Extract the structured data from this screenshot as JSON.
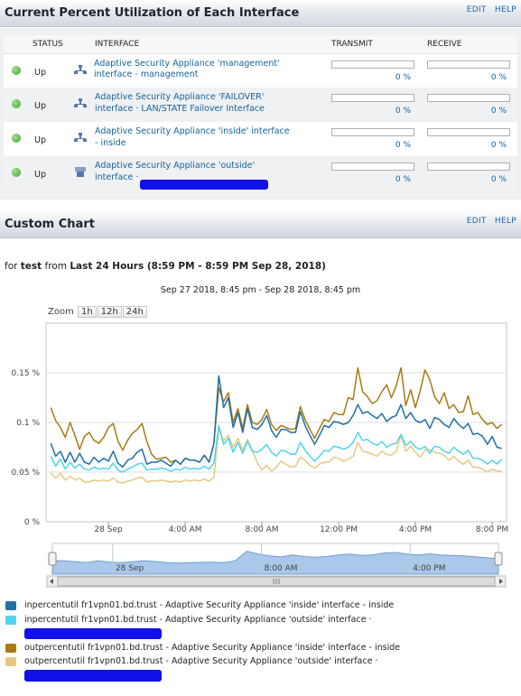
{
  "panel1": {
    "title": "Current Percent Utilization of Each Interface",
    "edit_label": "EDIT",
    "help_label": "HELP",
    "columns": {
      "status": "STATUS",
      "interface": "INTERFACE",
      "transmit": "TRANSMIT",
      "receive": "RECEIVE"
    },
    "rows": [
      {
        "status": "Up",
        "icon": "network-interface-icon",
        "name_line1": "Adaptive Security Appliance 'management'",
        "name_line2": "interface - management",
        "transmit": "0 %",
        "receive": "0 %"
      },
      {
        "status": "Up",
        "icon": "network-interface-icon",
        "name_line1": "Adaptive Security Appliance 'FAILOVER'",
        "name_line2": "interface · LAN/STATE Failover Interface",
        "transmit": "0 %",
        "receive": "0 %"
      },
      {
        "status": "Up",
        "icon": "network-interface-icon",
        "name_line1": "Adaptive Security Appliance 'inside' interface",
        "name_line2": "- inside",
        "transmit": "0 %",
        "receive": "0 %"
      },
      {
        "status": "Up",
        "icon": "ethernet-port-icon",
        "name_line1": "Adaptive Security Appliance 'outside'",
        "name_line2": "interface ·",
        "transmit": "0 %",
        "receive": "0 %"
      }
    ]
  },
  "panel2": {
    "title": "Custom Chart",
    "edit_label": "EDIT",
    "help_label": "HELP",
    "for_label": "for",
    "node": "test",
    "from_label": "from",
    "period": "Last 24 Hours (8:59 PM - 8:59 PM Sep 28, 2018)",
    "date_range": "Sep 27 2018, 8:45 pm - Sep 28 2018, 8:45 pm",
    "zoom_label": "Zoom",
    "zoom_options": [
      "1h",
      "12h",
      "24h"
    ]
  },
  "chart_data": {
    "type": "line",
    "x_labels": [
      "28 Sep",
      "4:00 AM",
      "8:00 AM",
      "12:00 PM",
      "4:00 PM",
      "8:00 PM"
    ],
    "navigator_labels": [
      "28 Sep",
      "8:00 AM",
      "4:00 PM"
    ],
    "y_labels": [
      "0 %",
      "0.05 %",
      "0.1 %",
      "0.15 %"
    ],
    "ylim": [
      0,
      0.2
    ],
    "xlim_hours": [
      -3.25,
      20.75
    ],
    "x_hours": [
      -3.0,
      -2.75,
      -2.5,
      -2.25,
      -2.0,
      -1.75,
      -1.5,
      -1.25,
      -1.0,
      -0.75,
      -0.5,
      -0.25,
      0.0,
      0.25,
      0.5,
      0.75,
      1.0,
      1.25,
      1.5,
      1.75,
      2.0,
      2.25,
      2.5,
      2.75,
      3.0,
      3.25,
      3.5,
      3.75,
      4.0,
      4.25,
      4.5,
      4.75,
      5.0,
      5.25,
      5.5,
      5.75,
      6.0,
      6.25,
      6.5,
      6.75,
      7.0,
      7.25,
      7.5,
      7.75,
      8.0,
      8.25,
      8.5,
      8.75,
      9.0,
      9.25,
      9.5,
      9.75,
      10.0,
      10.25,
      10.5,
      10.75,
      11.0,
      11.25,
      11.5,
      11.75,
      12.0,
      12.25,
      12.5,
      12.75,
      13.0,
      13.25,
      13.5,
      13.75,
      14.0,
      14.25,
      14.5,
      14.75,
      15.0,
      15.25,
      15.5,
      15.75,
      16.0,
      16.25,
      16.5,
      16.75,
      17.0,
      17.25,
      17.5,
      17.75,
      18.0,
      18.25,
      18.5,
      18.75,
      19.0,
      19.25,
      19.5,
      19.75,
      20.0,
      20.25,
      20.5
    ],
    "series": [
      {
        "name": "inpercentutil fr1vpn01.bd.trust - Adaptive Security Appliance 'inside' interface - inside",
        "color": "#1f6fa8",
        "values": [
          0.079,
          0.066,
          0.071,
          0.06,
          0.07,
          0.06,
          0.069,
          0.06,
          0.058,
          0.065,
          0.06,
          0.064,
          0.061,
          0.071,
          0.059,
          0.055,
          0.062,
          0.064,
          0.07,
          0.073,
          0.058,
          0.06,
          0.06,
          0.062,
          0.059,
          0.056,
          0.062,
          0.058,
          0.064,
          0.062,
          0.062,
          0.06,
          0.067,
          0.06,
          0.079,
          0.147,
          0.115,
          0.125,
          0.095,
          0.11,
          0.09,
          0.114,
          0.095,
          0.093,
          0.098,
          0.107,
          0.092,
          0.085,
          0.093,
          0.093,
          0.09,
          0.09,
          0.111,
          0.097,
          0.087,
          0.078,
          0.087,
          0.097,
          0.095,
          0.101,
          0.1,
          0.098,
          0.1,
          0.107,
          0.118,
          0.109,
          0.111,
          0.107,
          0.104,
          0.109,
          0.101,
          0.105,
          0.107,
          0.118,
          0.104,
          0.11,
          0.102,
          0.1,
          0.103,
          0.094,
          0.105,
          0.103,
          0.098,
          0.095,
          0.104,
          0.098,
          0.094,
          0.099,
          0.088,
          0.089,
          0.086,
          0.078,
          0.086,
          0.075,
          0.074
        ]
      },
      {
        "name": "inpercentutil fr1vpn01.bd.trust - Adaptive Security Appliance 'outside' interface ·",
        "color": "#4fd4ec",
        "values": [
          0.066,
          0.056,
          0.063,
          0.053,
          0.06,
          0.054,
          0.058,
          0.053,
          0.052,
          0.055,
          0.053,
          0.054,
          0.053,
          0.059,
          0.052,
          0.05,
          0.053,
          0.055,
          0.058,
          0.059,
          0.052,
          0.053,
          0.053,
          0.054,
          0.053,
          0.051,
          0.053,
          0.052,
          0.055,
          0.053,
          0.054,
          0.053,
          0.056,
          0.053,
          0.059,
          0.097,
          0.078,
          0.084,
          0.07,
          0.08,
          0.069,
          0.081,
          0.071,
          0.07,
          0.073,
          0.078,
          0.07,
          0.066,
          0.072,
          0.071,
          0.068,
          0.068,
          0.08,
          0.072,
          0.066,
          0.061,
          0.066,
          0.072,
          0.071,
          0.076,
          0.075,
          0.073,
          0.075,
          0.08,
          0.09,
          0.082,
          0.083,
          0.079,
          0.077,
          0.081,
          0.075,
          0.078,
          0.079,
          0.088,
          0.077,
          0.081,
          0.075,
          0.073,
          0.076,
          0.069,
          0.076,
          0.075,
          0.071,
          0.069,
          0.075,
          0.071,
          0.068,
          0.072,
          0.064,
          0.064,
          0.062,
          0.058,
          0.062,
          0.058,
          0.063
        ]
      },
      {
        "name": "outpercentutil fr1vpn01.bd.trust - Adaptive Security Appliance 'inside' interface - inside",
        "color": "#a87b14",
        "values": [
          0.115,
          0.102,
          0.095,
          0.085,
          0.1,
          0.087,
          0.073,
          0.086,
          0.09,
          0.082,
          0.079,
          0.085,
          0.095,
          0.099,
          0.081,
          0.072,
          0.082,
          0.089,
          0.093,
          0.099,
          0.081,
          0.068,
          0.063,
          0.064,
          0.065,
          0.06,
          0.062,
          0.058,
          0.064,
          0.062,
          0.062,
          0.06,
          0.067,
          0.06,
          0.079,
          0.135,
          0.121,
          0.13,
          0.1,
          0.114,
          0.094,
          0.118,
          0.1,
          0.098,
          0.103,
          0.113,
          0.098,
          0.092,
          0.097,
          0.095,
          0.093,
          0.094,
          0.116,
          0.103,
          0.093,
          0.084,
          0.094,
          0.103,
          0.101,
          0.11,
          0.108,
          0.108,
          0.125,
          0.123,
          0.155,
          0.131,
          0.126,
          0.119,
          0.122,
          0.131,
          0.138,
          0.125,
          0.137,
          0.155,
          0.117,
          0.133,
          0.115,
          0.132,
          0.153,
          0.143,
          0.126,
          0.119,
          0.13,
          0.114,
          0.118,
          0.11,
          0.111,
          0.127,
          0.108,
          0.11,
          0.103,
          0.098,
          0.1,
          0.094,
          0.098
        ]
      },
      {
        "name": "outpercentutil fr1vpn01.bd.trust - Adaptive Security Appliance 'outside' interface ·",
        "color": "#e6c884",
        "values": [
          0.049,
          0.044,
          0.049,
          0.042,
          0.046,
          0.042,
          0.044,
          0.04,
          0.04,
          0.042,
          0.041,
          0.042,
          0.041,
          0.044,
          0.04,
          0.039,
          0.041,
          0.042,
          0.044,
          0.045,
          0.04,
          0.041,
          0.041,
          0.042,
          0.041,
          0.04,
          0.041,
          0.04,
          0.042,
          0.041,
          0.042,
          0.041,
          0.043,
          0.041,
          0.045,
          0.093,
          0.082,
          0.087,
          0.075,
          0.084,
          0.072,
          0.083,
          0.072,
          0.06,
          0.052,
          0.057,
          0.051,
          0.055,
          0.061,
          0.058,
          0.055,
          0.056,
          0.065,
          0.062,
          0.057,
          0.054,
          0.058,
          0.06,
          0.06,
          0.065,
          0.064,
          0.061,
          0.063,
          0.066,
          0.08,
          0.071,
          0.07,
          0.068,
          0.066,
          0.071,
          0.068,
          0.067,
          0.071,
          0.087,
          0.071,
          0.076,
          0.07,
          0.065,
          0.072,
          0.073,
          0.07,
          0.069,
          0.067,
          0.062,
          0.066,
          0.061,
          0.058,
          0.062,
          0.055,
          0.055,
          0.053,
          0.05,
          0.053,
          0.051,
          0.051
        ]
      }
    ],
    "navigator_values": [
      0.07,
      0.07,
      0.065,
      0.06,
      0.07,
      0.062,
      0.06,
      0.065,
      0.07,
      0.066,
      0.06,
      0.058,
      0.06,
      0.061,
      0.062,
      0.06,
      0.07,
      0.12,
      0.105,
      0.095,
      0.09,
      0.1,
      0.092,
      0.088,
      0.092,
      0.1,
      0.105,
      0.098,
      0.1,
      0.11,
      0.113,
      0.105,
      0.1,
      0.106,
      0.1,
      0.098,
      0.095,
      0.09,
      0.085,
      0.08
    ],
    "legend": "bottom"
  }
}
